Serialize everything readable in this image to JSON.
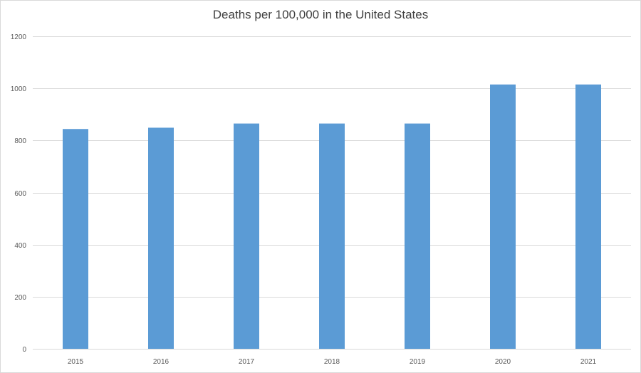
{
  "chart_data": {
    "type": "bar",
    "title": "Deaths per 100,000 in the United States",
    "xlabel": "",
    "ylabel": "",
    "categories": [
      "2015",
      "2016",
      "2017",
      "2018",
      "2019",
      "2020",
      "2021"
    ],
    "values": [
      844,
      849,
      865,
      865,
      865,
      1015,
      1015
    ],
    "ylim": [
      0,
      1200
    ],
    "yticks": [
      0,
      200,
      400,
      600,
      800,
      1000,
      1200
    ],
    "ytick_labels": [
      "0",
      "200",
      "400",
      "600",
      "800",
      "1000",
      "1200"
    ],
    "grid": true,
    "legend": "none",
    "bar_color": "#5b9bd5",
    "grid_color": "#d9d9d9"
  }
}
